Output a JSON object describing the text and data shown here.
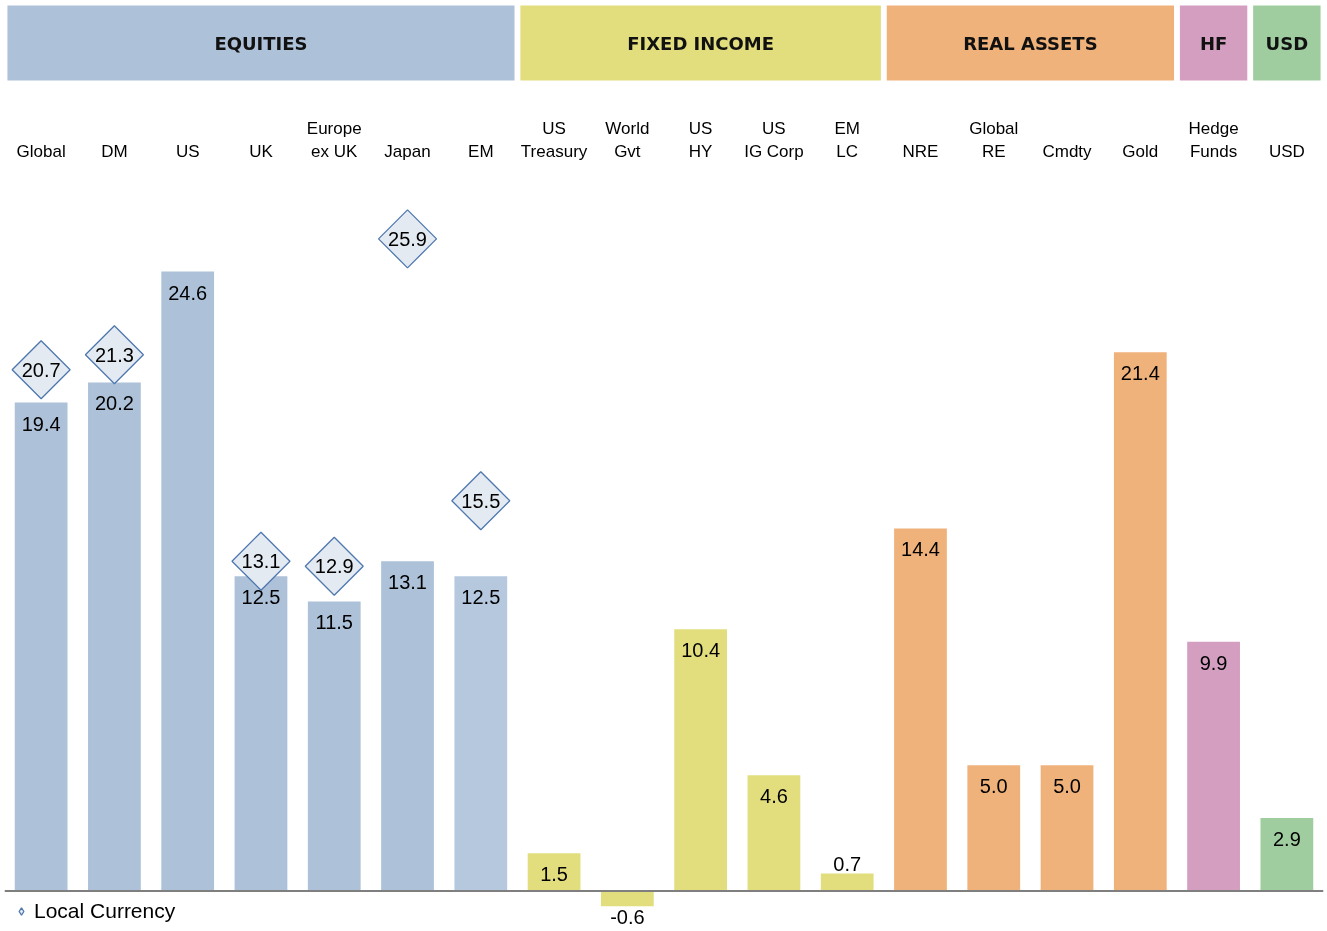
{
  "chart_data": {
    "type": "bar",
    "categories": [
      "Global",
      "DM",
      "US",
      "UK",
      "Europe\nex UK",
      "Japan",
      "EM",
      "US\nTreasury",
      "World\nGvt",
      "US\nHY",
      "US\nIG Corp",
      "EM\nLC",
      "NRE",
      "Global\nRE",
      "Cmdty",
      "Gold",
      "Hedge\nFunds",
      "USD"
    ],
    "series": [
      {
        "values": [
          19.4,
          20.2,
          24.6,
          12.5,
          11.5,
          13.1,
          12.5,
          1.5,
          -0.6,
          10.4,
          4.6,
          0.7,
          14.4,
          5.0,
          5.0,
          21.4,
          9.9,
          2.9
        ],
        "value_labels": [
          "19.4",
          "20.2",
          "24.6",
          "12.5",
          "11.5",
          "13.1",
          "12.5",
          "1.5",
          "-0.6",
          "10.4",
          "4.6",
          "0.7",
          "14.4",
          "5.0",
          "5.0",
          "21.4",
          "9.9",
          "2.9"
        ],
        "colors": [
          "#adc2d9",
          "#adc2d9",
          "#adc2d9",
          "#adc2d9",
          "#adc2d9",
          "#adc2d9",
          "#b5c8de",
          "#e2de7e",
          "#e2de7e",
          "#e2de7e",
          "#e2de7e",
          "#e2de7e",
          "#f0b27b",
          "#f0b27b",
          "#f0b27b",
          "#f0b27b",
          "#d49ec1",
          "#a0cd9f"
        ]
      },
      {
        "type": "scatter",
        "name": "Local Currency",
        "color": "#4e77ae",
        "values": [
          20.7,
          21.3,
          null,
          13.1,
          12.9,
          25.9,
          15.5,
          null,
          null,
          null,
          null,
          null,
          null,
          null,
          null,
          null,
          null,
          null
        ]
      }
    ],
    "annotations": [
      "EQUITIES",
      "FIXED INCOME",
      "REAL ASSETS",
      "HF",
      "USD"
    ],
    "data_labels": true,
    "marker": "diamond",
    "legend": "bottom left",
    "grid": false,
    "tick_labels": "x"
  }
}
